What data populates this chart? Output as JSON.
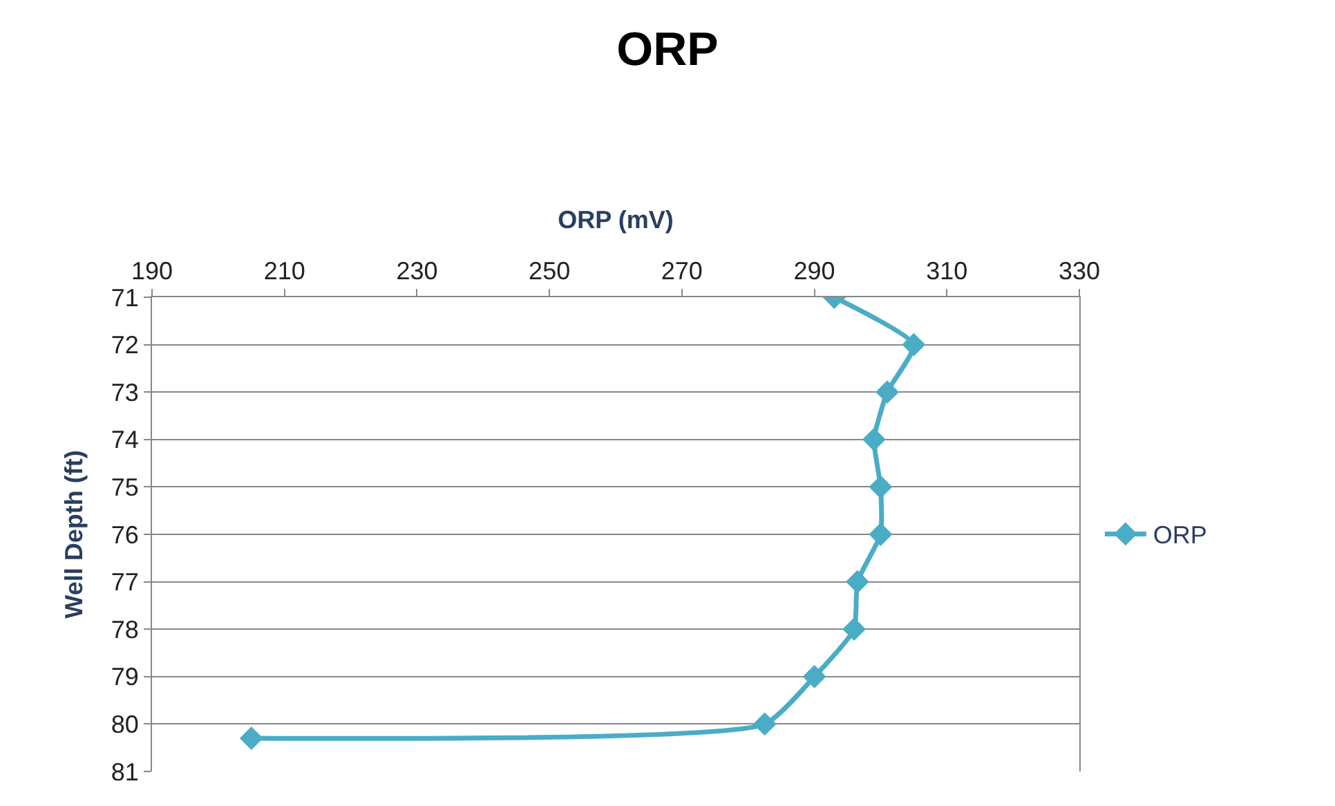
{
  "chart_data": {
    "type": "line",
    "title": "ORP",
    "xlabel": "ORP (mV)",
    "ylabel": "Well Depth (ft)",
    "series": [
      {
        "name": "ORP",
        "color": "#4bacc6",
        "x": [
          293,
          305,
          301,
          299,
          300,
          300,
          296.5,
          296,
          290,
          282.5,
          205
        ],
        "values": [
          71,
          72,
          73,
          74,
          75,
          76,
          77,
          78,
          79,
          80,
          80.3
        ]
      }
    ],
    "xlim": [
      190,
      330
    ],
    "xticks": [
      190,
      210,
      230,
      250,
      270,
      290,
      310,
      330
    ],
    "ylim": [
      81,
      71
    ],
    "yticks": [
      71,
      72,
      73,
      74,
      75,
      76,
      77,
      78,
      79,
      80,
      81
    ],
    "grid": "y",
    "legend": "right",
    "marker": "diamond",
    "line_style": "solid"
  }
}
